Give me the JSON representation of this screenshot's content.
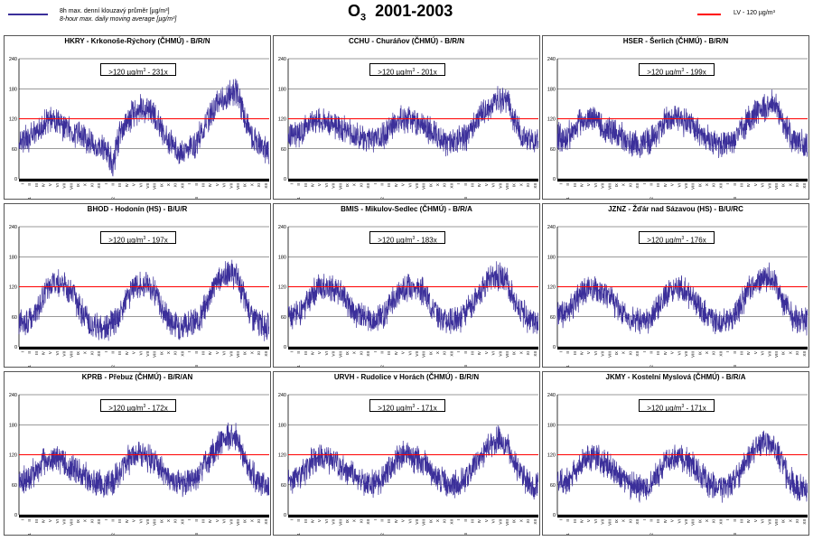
{
  "header": {
    "title_base": "O",
    "title_sub": "3",
    "title_rest": "2001-2003",
    "legend_cz": "8h max. denní klouzavý průměr [µg/m³]",
    "legend_en": "8-hour max. daily moving average [µg/m³]",
    "lv_label": "LV   - 120 µg/m³"
  },
  "colors": {
    "series": "#3b2f9a",
    "limit": "#ff0000",
    "axis": "#000000"
  },
  "chart_data": {
    "type": "line",
    "shared": {
      "ylim": [
        0,
        240
      ],
      "yticks": [
        0,
        60,
        120,
        180,
        240
      ],
      "limit_value": 120,
      "month_ticks": [
        "I",
        "II",
        "III",
        "IV",
        "V",
        "VI",
        "VII",
        "VIII",
        "IX",
        "X",
        "XI",
        "XII"
      ],
      "years": [
        "01",
        "02",
        "03"
      ],
      "count_prefix": ">120 µg/m",
      "count_sup": "3"
    },
    "panels": [
      {
        "title": "HKRY - Krkonoše-Rýchory (ČHMÚ) - B/R/N",
        "count_suffix": " - 231x",
        "monthly": [
          80,
          78,
          92,
          110,
          118,
          110,
          100,
          96,
          88,
          82,
          68,
          62,
          60,
          28,
          90,
          112,
          132,
          138,
          142,
          128,
          98,
          78,
          58,
          52,
          62,
          72,
          100,
          128,
          152,
          158,
          170,
          172,
          118,
          86,
          70,
          58
        ]
      },
      {
        "title": "CCHU - Churáňov (ČHMÚ) - B/R/N",
        "count_suffix": " - 201x",
        "monthly": [
          86,
          90,
          100,
          115,
          120,
          118,
          110,
          104,
          96,
          88,
          80,
          76,
          80,
          82,
          100,
          115,
          120,
          118,
          116,
          108,
          96,
          86,
          76,
          72,
          76,
          84,
          102,
          120,
          135,
          150,
          158,
          162,
          118,
          88,
          80,
          74
        ]
      },
      {
        "title": "HSER - Šerlich (ČHMÚ) - B/R/N",
        "count_suffix": " - 199x",
        "monthly": [
          80,
          84,
          100,
          116,
          122,
          116,
          106,
          98,
          90,
          82,
          74,
          70,
          72,
          78,
          96,
          112,
          120,
          118,
          112,
          104,
          92,
          82,
          70,
          66,
          70,
          78,
          98,
          118,
          132,
          140,
          148,
          150,
          112,
          84,
          74,
          68
        ]
      },
      {
        "title": "BHOD - Hodonín (HS) - B/U/R",
        "count_suffix": " - 197x",
        "monthly": [
          44,
          52,
          70,
          100,
          122,
          128,
          126,
          114,
          82,
          60,
          46,
          40,
          40,
          46,
          64,
          96,
          118,
          124,
          126,
          112,
          80,
          56,
          44,
          40,
          42,
          50,
          70,
          106,
          132,
          142,
          146,
          134,
          94,
          62,
          48,
          42
        ]
      },
      {
        "title": "BMIS - Mikulov-Sedlec (ČHMÚ) - B/R/A",
        "count_suffix": " - 183x",
        "monthly": [
          58,
          66,
          80,
          104,
          118,
          122,
          118,
          108,
          88,
          70,
          58,
          54,
          54,
          60,
          80,
          100,
          116,
          120,
          120,
          108,
          86,
          66,
          54,
          50,
          56,
          64,
          84,
          110,
          130,
          140,
          142,
          128,
          98,
          72,
          56,
          50
        ]
      },
      {
        "title": "JZNZ - Žďár nad Sázavou (HS) - B/U/RC",
        "count_suffix": " - 176x",
        "monthly": [
          62,
          70,
          86,
          110,
          118,
          116,
          110,
          100,
          82,
          66,
          54,
          50,
          52,
          60,
          80,
          104,
          116,
          114,
          110,
          98,
          78,
          60,
          52,
          48,
          56,
          64,
          86,
          112,
          130,
          138,
          140,
          124,
          92,
          66,
          54,
          50
        ]
      },
      {
        "title": "KPRB - Přebuz (ČHMÚ) - B/R/AN",
        "count_suffix": " - 172x",
        "monthly": [
          70,
          74,
          88,
          104,
          112,
          110,
          104,
          96,
          86,
          76,
          68,
          64,
          62,
          66,
          86,
          106,
          118,
          118,
          114,
          104,
          90,
          76,
          64,
          60,
          64,
          72,
          94,
          116,
          136,
          150,
          160,
          150,
          110,
          80,
          66,
          60
        ]
      },
      {
        "title": "URVH - Rudolice v Horách (ČHMÚ) - B/R/N",
        "count_suffix": " - 171x",
        "monthly": [
          72,
          76,
          90,
          108,
          116,
          114,
          108,
          98,
          88,
          78,
          68,
          64,
          64,
          68,
          88,
          108,
          118,
          116,
          112,
          102,
          88,
          74,
          64,
          58,
          62,
          70,
          92,
          116,
          132,
          142,
          150,
          140,
          104,
          76,
          62,
          56
        ]
      },
      {
        "title": "JKMY - Kostelní Myslová (ČHMÚ) - B/R/A",
        "count_suffix": " - 171x",
        "monthly": [
          64,
          70,
          86,
          106,
          116,
          114,
          108,
          98,
          84,
          70,
          60,
          56,
          56,
          62,
          82,
          104,
          116,
          116,
          112,
          100,
          82,
          66,
          56,
          52,
          58,
          66,
          88,
          112,
          130,
          140,
          142,
          126,
          94,
          68,
          56,
          50
        ]
      }
    ]
  }
}
